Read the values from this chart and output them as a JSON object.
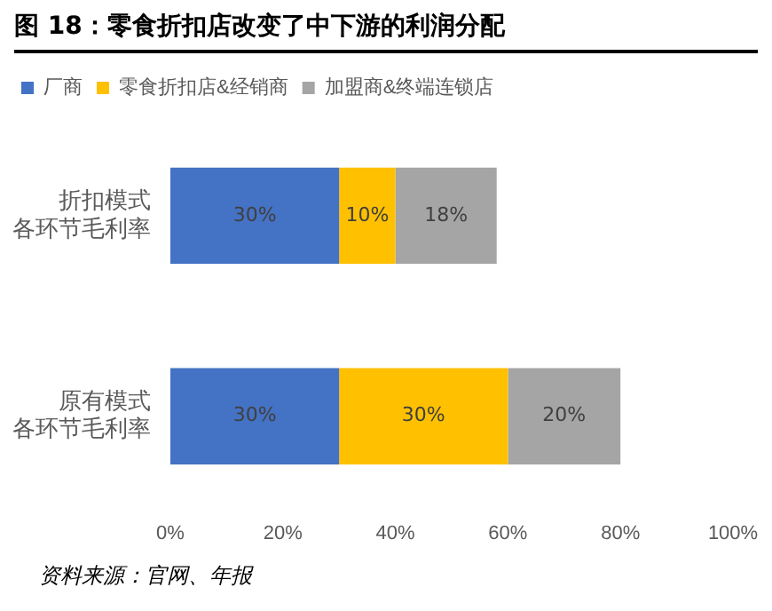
{
  "chart_data": {
    "type": "bar",
    "orientation": "horizontal",
    "stacked": true,
    "title": "图 18：零食折扣店改变了中下游的利润分配",
    "categories": [
      "折扣模式各环节毛利率",
      "原有模式各环节毛利率"
    ],
    "series": [
      {
        "name": "厂商",
        "color": "#4472c4",
        "values": [
          30,
          30
        ],
        "value_labels": [
          "30%",
          "30%"
        ]
      },
      {
        "name": "零食折扣店&经销商",
        "color": "#ffc000",
        "values": [
          10,
          30
        ],
        "value_labels": [
          "10%",
          "30%"
        ]
      },
      {
        "name": "加盟商&终端连锁店",
        "color": "#a5a5a5",
        "values": [
          18,
          20
        ],
        "value_labels": [
          "18%",
          "20%"
        ]
      }
    ],
    "xlim": [
      0,
      100
    ],
    "xticks": [
      {
        "value": 0,
        "label": "0%"
      },
      {
        "value": 20,
        "label": "20%"
      },
      {
        "value": 40,
        "label": "40%"
      },
      {
        "value": 60,
        "label": "60%"
      },
      {
        "value": 80,
        "label": "80%"
      },
      {
        "value": 100,
        "label": "100%"
      }
    ],
    "grid": false,
    "legend": "top",
    "annotations": [
      "资料来源：官网、年报"
    ]
  }
}
